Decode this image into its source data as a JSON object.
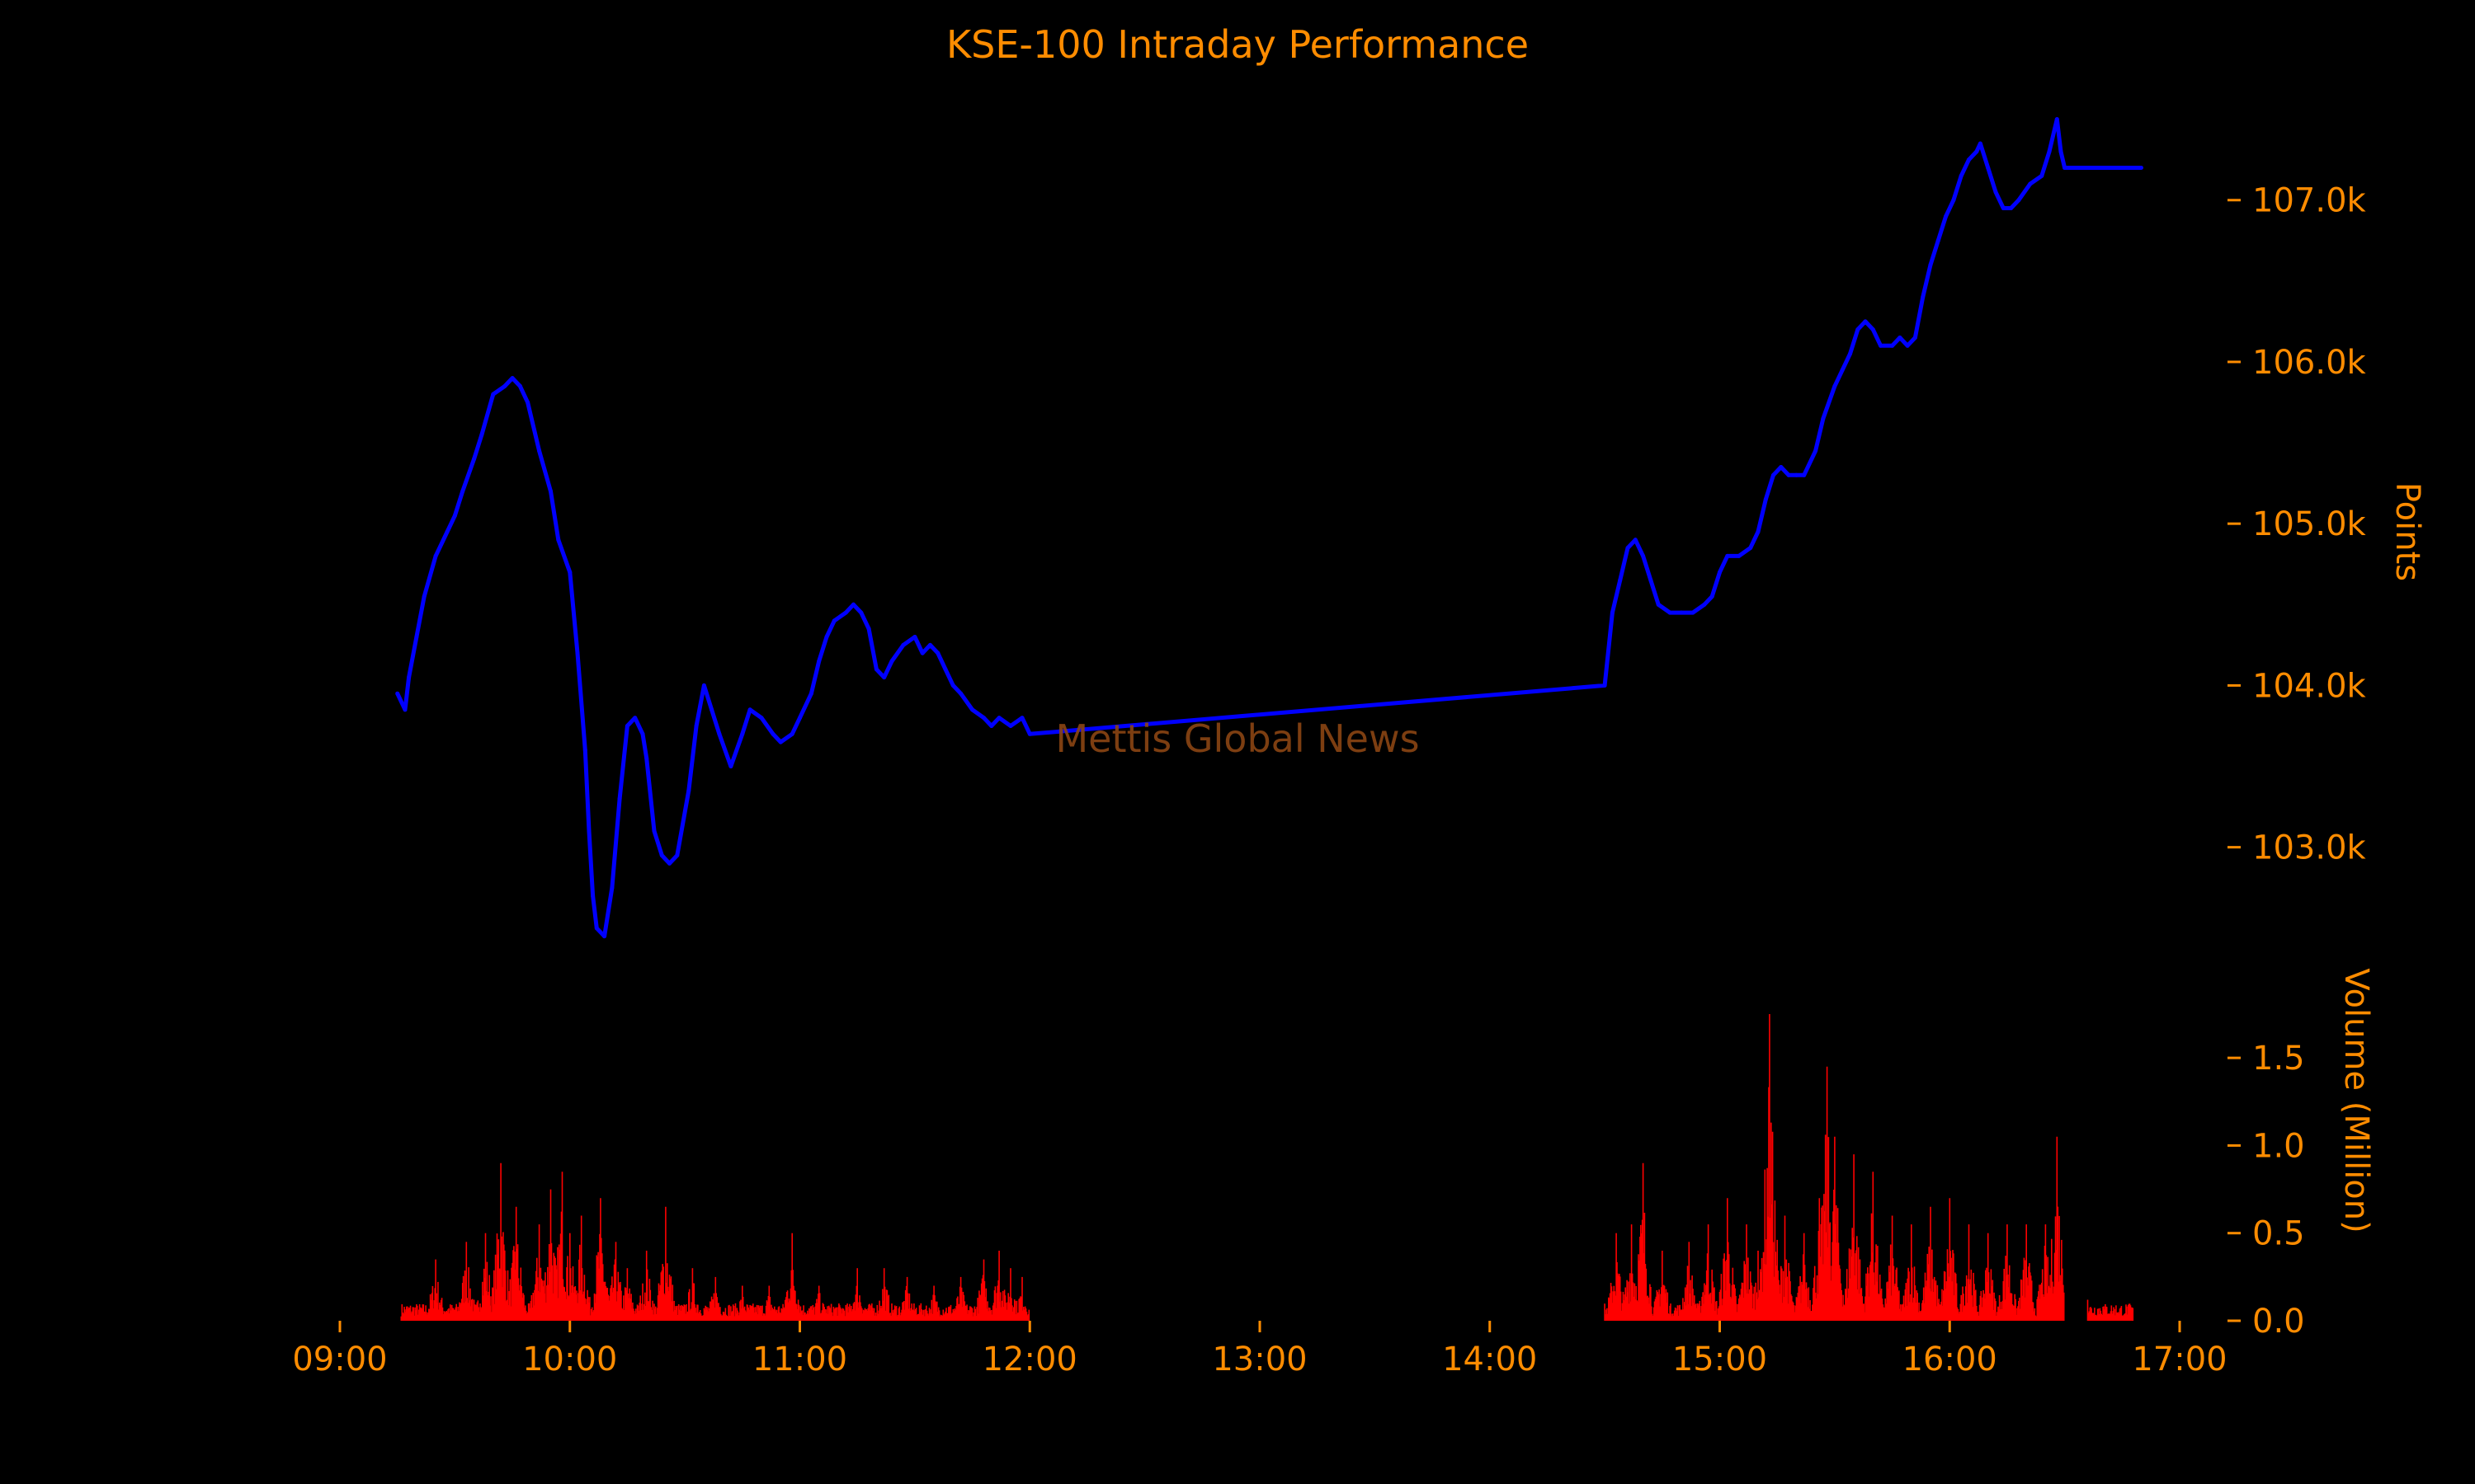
{
  "chart_data": {
    "type": "line",
    "title": "KSE-100 Intraday Performance",
    "watermark": "Mettis Global News",
    "colors": {
      "background": "#000000",
      "text": "#ff8c00",
      "price_line": "#0000ff",
      "volume_bars": "#ff0000",
      "watermark": "#8b4513"
    },
    "x_axis": {
      "type": "time",
      "range": [
        "09:00",
        "17:00"
      ],
      "ticks": [
        "09:00",
        "10:00",
        "11:00",
        "12:00",
        "13:00",
        "14:00",
        "15:00",
        "16:00",
        "17:00"
      ]
    },
    "price_axis": {
      "label": "Points",
      "side": "right",
      "range": [
        102300,
        107600
      ],
      "ticks": [
        103000,
        104000,
        105000,
        106000,
        107000
      ],
      "tick_labels": [
        "103.0k",
        "104.0k",
        "105.0k",
        "106.0k",
        "107.0k"
      ]
    },
    "volume_axis": {
      "label": "Volume (Million)",
      "side": "right",
      "range": [
        0,
        1.75
      ],
      "ticks": [
        0,
        0.5,
        1.0,
        1.5
      ],
      "tick_labels": [
        "0.0",
        "0.5",
        "1.0",
        "1.5"
      ]
    },
    "grid": false,
    "legend": "none",
    "price_series": {
      "name": "",
      "points": [
        [
          "09:15",
          103950
        ],
        [
          "09:17",
          103850
        ],
        [
          "09:18",
          104050
        ],
        [
          "09:20",
          104300
        ],
        [
          "09:22",
          104550
        ],
        [
          "09:25",
          104800
        ],
        [
          "09:28",
          104950
        ],
        [
          "09:30",
          105050
        ],
        [
          "09:32",
          105200
        ],
        [
          "09:35",
          105400
        ],
        [
          "09:37",
          105550
        ],
        [
          "09:40",
          105800
        ],
        [
          "09:43",
          105850
        ],
        [
          "09:45",
          105900
        ],
        [
          "09:47",
          105850
        ],
        [
          "09:49",
          105750
        ],
        [
          "09:52",
          105450
        ],
        [
          "09:55",
          105200
        ],
        [
          "09:57",
          104900
        ],
        [
          "10:00",
          104700
        ],
        [
          "10:02",
          104200
        ],
        [
          "10:04",
          103600
        ],
        [
          "10:05",
          103100
        ],
        [
          "10:06",
          102700
        ],
        [
          "10:07",
          102500
        ],
        [
          "10:09",
          102450
        ],
        [
          "10:11",
          102750
        ],
        [
          "10:13",
          103300
        ],
        [
          "10:15",
          103750
        ],
        [
          "10:17",
          103800
        ],
        [
          "10:19",
          103700
        ],
        [
          "10:20",
          103550
        ],
        [
          "10:22",
          103100
        ],
        [
          "10:24",
          102950
        ],
        [
          "10:26",
          102900
        ],
        [
          "10:28",
          102950
        ],
        [
          "10:31",
          103350
        ],
        [
          "10:33",
          103750
        ],
        [
          "10:35",
          104000
        ],
        [
          "10:37",
          103850
        ],
        [
          "10:39",
          103700
        ],
        [
          "10:42",
          103500
        ],
        [
          "10:45",
          103700
        ],
        [
          "10:47",
          103850
        ],
        [
          "10:50",
          103800
        ],
        [
          "10:53",
          103700
        ],
        [
          "10:55",
          103650
        ],
        [
          "10:58",
          103700
        ],
        [
          "11:00",
          103800
        ],
        [
          "11:03",
          103950
        ],
        [
          "11:05",
          104150
        ],
        [
          "11:07",
          104300
        ],
        [
          "11:09",
          104400
        ],
        [
          "11:12",
          104450
        ],
        [
          "11:14",
          104500
        ],
        [
          "11:16",
          104450
        ],
        [
          "11:18",
          104350
        ],
        [
          "11:20",
          104100
        ],
        [
          "11:22",
          104050
        ],
        [
          "11:24",
          104150
        ],
        [
          "11:27",
          104250
        ],
        [
          "11:30",
          104300
        ],
        [
          "11:32",
          104200
        ],
        [
          "11:34",
          104250
        ],
        [
          "11:36",
          104200
        ],
        [
          "11:38",
          104100
        ],
        [
          "11:40",
          104000
        ],
        [
          "11:42",
          103950
        ],
        [
          "11:45",
          103850
        ],
        [
          "11:48",
          103800
        ],
        [
          "11:50",
          103750
        ],
        [
          "11:52",
          103800
        ],
        [
          "11:55",
          103750
        ],
        [
          "11:58",
          103800
        ],
        [
          "12:00",
          103700
        ],
        [
          "14:30",
          104000
        ],
        [
          "14:32",
          104450
        ],
        [
          "14:34",
          104650
        ],
        [
          "14:36",
          104850
        ],
        [
          "14:38",
          104900
        ],
        [
          "14:40",
          104800
        ],
        [
          "14:42",
          104650
        ],
        [
          "14:44",
          104500
        ],
        [
          "14:47",
          104450
        ],
        [
          "14:50",
          104450
        ],
        [
          "14:53",
          104450
        ],
        [
          "14:56",
          104500
        ],
        [
          "14:58",
          104550
        ],
        [
          "15:00",
          104700
        ],
        [
          "15:02",
          104800
        ],
        [
          "15:05",
          104800
        ],
        [
          "15:08",
          104850
        ],
        [
          "15:10",
          104950
        ],
        [
          "15:12",
          105150
        ],
        [
          "15:14",
          105300
        ],
        [
          "15:16",
          105350
        ],
        [
          "15:18",
          105300
        ],
        [
          "15:20",
          105300
        ],
        [
          "15:22",
          105300
        ],
        [
          "15:25",
          105450
        ],
        [
          "15:27",
          105650
        ],
        [
          "15:30",
          105850
        ],
        [
          "15:32",
          105950
        ],
        [
          "15:34",
          106050
        ],
        [
          "15:36",
          106200
        ],
        [
          "15:38",
          106250
        ],
        [
          "15:40",
          106200
        ],
        [
          "15:42",
          106100
        ],
        [
          "15:45",
          106100
        ],
        [
          "15:47",
          106150
        ],
        [
          "15:49",
          106100
        ],
        [
          "15:51",
          106150
        ],
        [
          "15:53",
          106400
        ],
        [
          "15:55",
          106600
        ],
        [
          "15:57",
          106750
        ],
        [
          "15:59",
          106900
        ],
        [
          "16:01",
          107000
        ],
        [
          "16:03",
          107150
        ],
        [
          "16:05",
          107250
        ],
        [
          "16:07",
          107300
        ],
        [
          "16:08",
          107350
        ],
        [
          "16:10",
          107200
        ],
        [
          "16:12",
          107050
        ],
        [
          "16:14",
          106950
        ],
        [
          "16:16",
          106950
        ],
        [
          "16:18",
          107000
        ],
        [
          "16:21",
          107100
        ],
        [
          "16:24",
          107150
        ],
        [
          "16:26",
          107300
        ],
        [
          "16:28",
          107500
        ],
        [
          "16:29",
          107300
        ],
        [
          "16:30",
          107200
        ],
        [
          "16:50",
          107200
        ]
      ]
    },
    "volume_series": {
      "name": "",
      "sessions": [
        {
          "start": "09:16",
          "end": "12:00",
          "peaks": [
            [
              "09:25",
              0.35
            ],
            [
              "09:33",
              0.45
            ],
            [
              "09:38",
              0.5
            ],
            [
              "09:42",
              0.9
            ],
            [
              "09:46",
              0.65
            ],
            [
              "09:52",
              0.55
            ],
            [
              "09:55",
              0.75
            ],
            [
              "09:58",
              0.85
            ],
            [
              "10:00",
              0.5
            ],
            [
              "10:03",
              0.6
            ],
            [
              "10:08",
              0.7
            ],
            [
              "10:12",
              0.45
            ],
            [
              "10:15",
              0.3
            ],
            [
              "10:20",
              0.4
            ],
            [
              "10:25",
              0.65
            ],
            [
              "10:32",
              0.3
            ],
            [
              "10:38",
              0.25
            ],
            [
              "10:45",
              0.2
            ],
            [
              "10:52",
              0.2
            ],
            [
              "10:58",
              0.5
            ],
            [
              "11:05",
              0.2
            ],
            [
              "11:15",
              0.3
            ],
            [
              "11:22",
              0.3
            ],
            [
              "11:28",
              0.25
            ],
            [
              "11:35",
              0.2
            ],
            [
              "11:42",
              0.25
            ],
            [
              "11:48",
              0.35
            ],
            [
              "11:52",
              0.4
            ],
            [
              "11:55",
              0.3
            ],
            [
              "11:58",
              0.25
            ]
          ]
        },
        {
          "start": "14:30",
          "end": "16:30",
          "peaks": [
            [
              "14:33",
              0.5
            ],
            [
              "14:37",
              0.55
            ],
            [
              "14:40",
              0.9
            ],
            [
              "14:45",
              0.4
            ],
            [
              "14:52",
              0.45
            ],
            [
              "14:57",
              0.55
            ],
            [
              "15:02",
              0.7
            ],
            [
              "15:07",
              0.55
            ],
            [
              "15:10",
              0.4
            ],
            [
              "15:13",
              1.75
            ],
            [
              "15:17",
              0.6
            ],
            [
              "15:22",
              0.5
            ],
            [
              "15:26",
              0.7
            ],
            [
              "15:28",
              1.45
            ],
            [
              "15:30",
              1.05
            ],
            [
              "15:35",
              0.95
            ],
            [
              "15:40",
              0.85
            ],
            [
              "15:45",
              0.6
            ],
            [
              "15:50",
              0.55
            ],
            [
              "15:55",
              0.65
            ],
            [
              "16:00",
              0.7
            ],
            [
              "16:05",
              0.55
            ],
            [
              "16:10",
              0.5
            ],
            [
              "16:15",
              0.55
            ],
            [
              "16:20",
              0.55
            ],
            [
              "16:25",
              0.55
            ],
            [
              "16:28",
              1.05
            ],
            [
              "16:30",
              0.75
            ]
          ]
        },
        {
          "start": "16:36",
          "end": "16:48",
          "peaks": [
            [
              "16:36",
              0.12
            ],
            [
              "16:40",
              0.08
            ],
            [
              "16:45",
              0.03
            ]
          ]
        }
      ],
      "baseline": 0.1
    }
  }
}
